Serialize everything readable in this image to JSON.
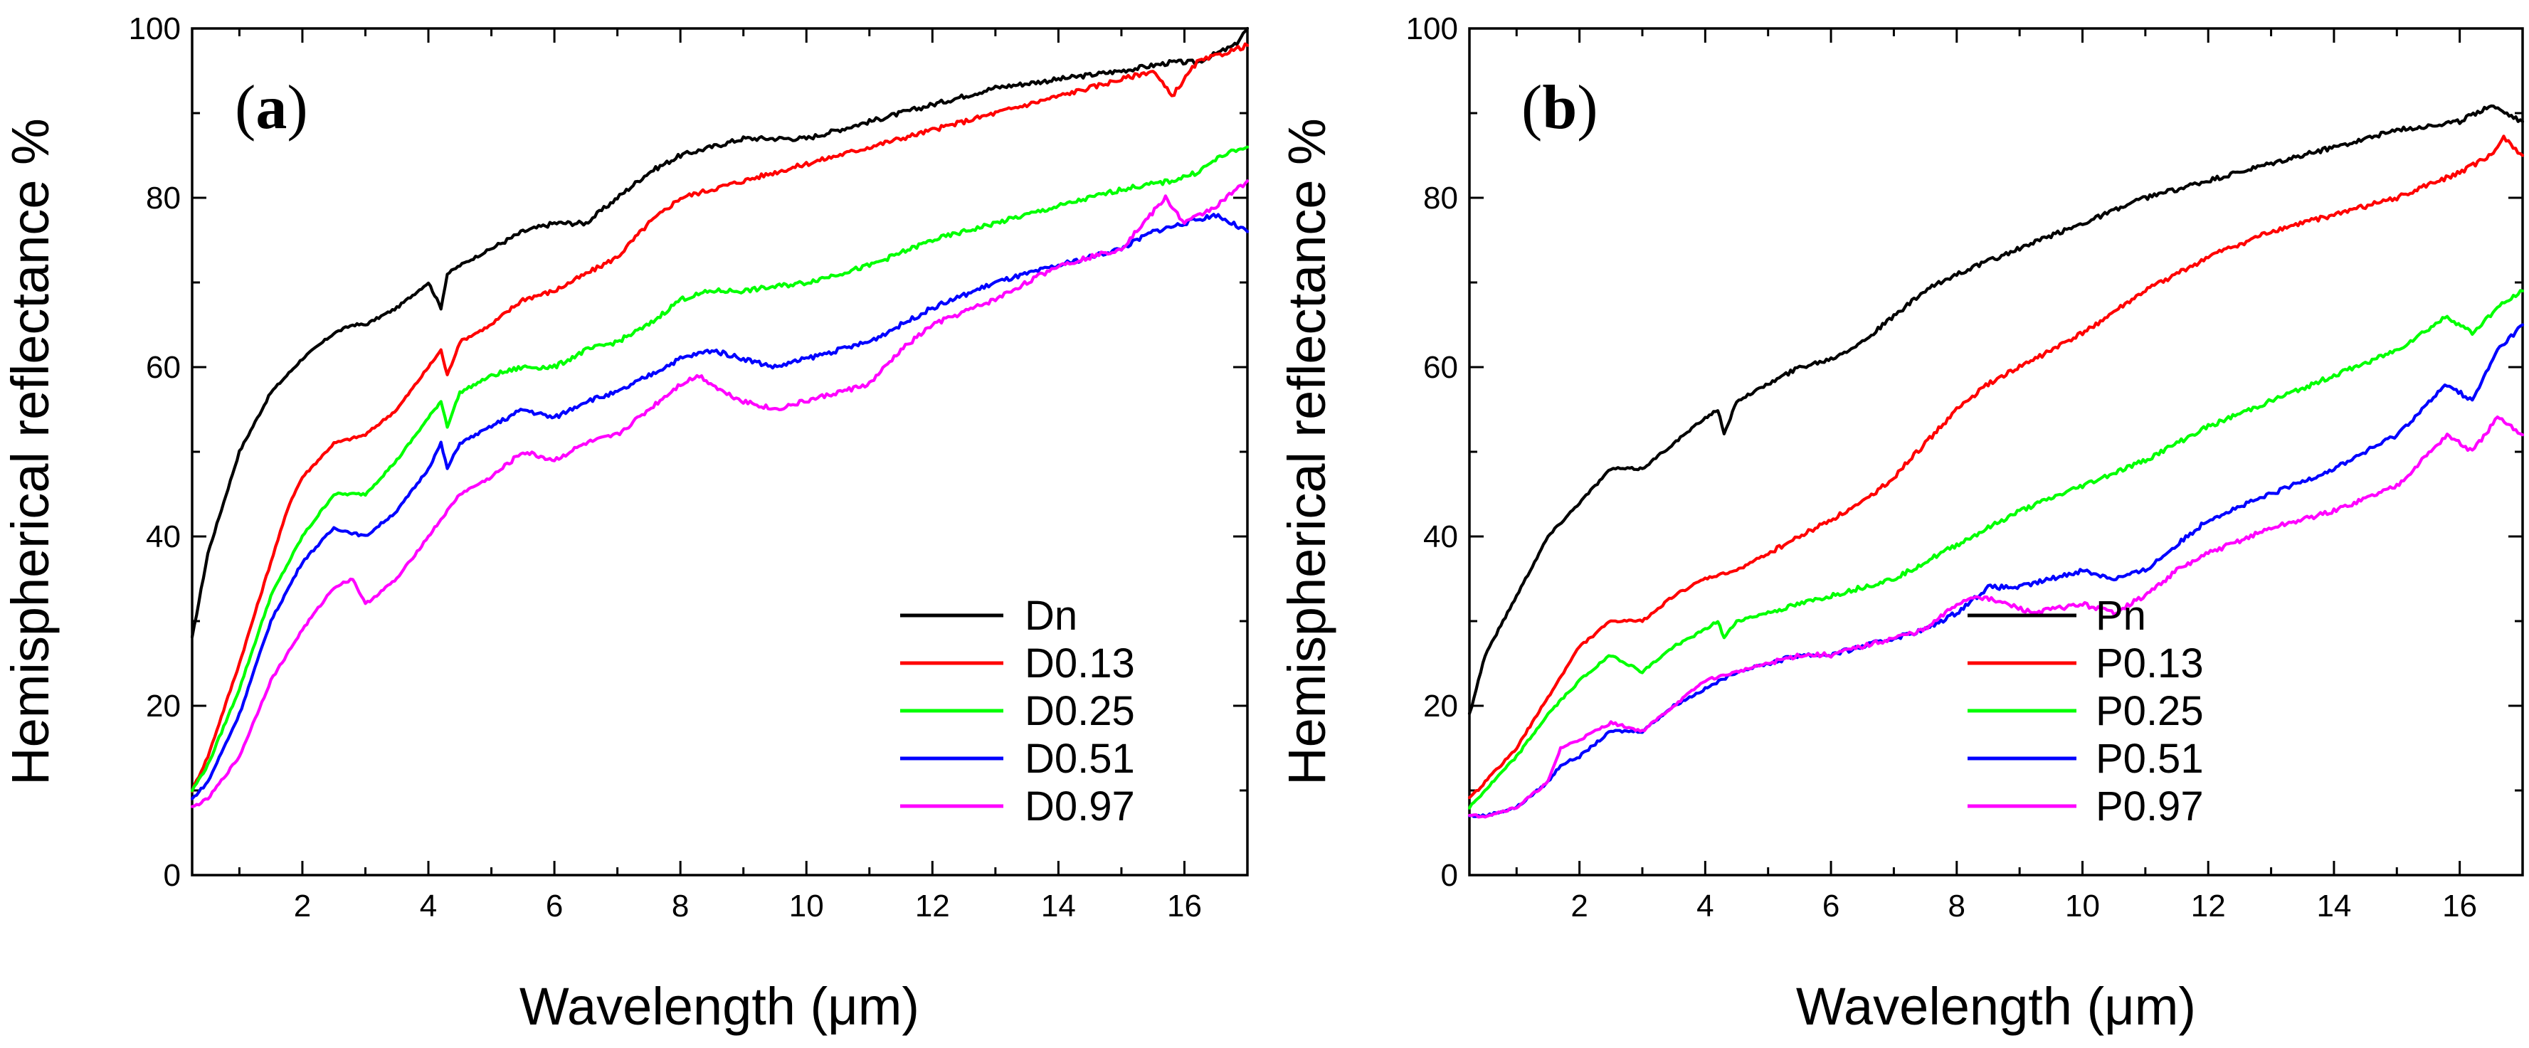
{
  "chart_data": [
    {
      "type": "line",
      "panel_label": "(a)",
      "panel_label_open": "(",
      "panel_label_letter": "a",
      "panel_label_close": ")",
      "xlabel": "Wavelength (μm)",
      "ylabel": "Hemispherical reflectance %",
      "xlim": [
        0.25,
        17
      ],
      "ylim": [
        0,
        100
      ],
      "xticks": [
        2,
        4,
        6,
        8,
        10,
        12,
        14,
        16
      ],
      "xtick_labels": [
        "2",
        "4",
        "6",
        "8",
        "10",
        "12",
        "14",
        "16"
      ],
      "yticks": [
        0,
        20,
        40,
        60,
        80,
        100
      ],
      "ytick_labels": [
        "0",
        "20",
        "40",
        "60",
        "80",
        "100"
      ],
      "legend_position": "bottom-right",
      "series": [
        {
          "name": "Dn",
          "color": "#000000",
          "x": [
            0.25,
            0.5,
            1.0,
            1.5,
            2.0,
            2.5,
            2.8,
            3.0,
            3.5,
            4.0,
            4.2,
            4.3,
            4.5,
            5.0,
            5.5,
            6.0,
            6.5,
            7.0,
            7.5,
            8.0,
            8.5,
            9.0,
            9.5,
            10.0,
            11.0,
            12.0,
            13.0,
            14.0,
            15.0,
            15.8,
            16.2,
            16.5,
            16.8,
            17.0
          ],
          "y": [
            28,
            38,
            50,
            57,
            61,
            64,
            65,
            65,
            67,
            70,
            67,
            71,
            72,
            74,
            76,
            77,
            77,
            80,
            83,
            85,
            86,
            87,
            87,
            87,
            89,
            91,
            93,
            94,
            95,
            96,
            96,
            97,
            98,
            100
          ]
        },
        {
          "name": "D0.13",
          "color": "#ff0000",
          "x": [
            0.25,
            0.5,
            1.0,
            1.5,
            1.8,
            2.0,
            2.5,
            3.0,
            3.5,
            4.0,
            4.2,
            4.3,
            4.5,
            5.0,
            5.5,
            6.0,
            6.5,
            7.0,
            7.5,
            8.0,
            8.5,
            9.0,
            10.0,
            11.0,
            12.0,
            13.0,
            14.0,
            15.0,
            15.5,
            15.8,
            16.2,
            16.6,
            17.0
          ],
          "y": [
            10,
            14,
            25,
            37,
            44,
            47,
            51,
            52,
            55,
            60,
            62,
            59,
            63,
            65,
            68,
            69,
            71,
            73,
            77,
            80,
            81,
            82,
            84,
            86,
            88,
            90,
            92,
            94,
            95,
            92,
            96,
            97,
            98
          ]
        },
        {
          "name": "D0.25",
          "color": "#00ff00",
          "x": [
            0.25,
            0.5,
            1.0,
            1.5,
            2.0,
            2.5,
            3.0,
            3.5,
            4.0,
            4.2,
            4.3,
            4.5,
            5.0,
            5.5,
            6.0,
            6.5,
            7.0,
            7.5,
            8.0,
            8.5,
            9.0,
            10.0,
            11.0,
            12.0,
            13.0,
            14.0,
            15.0,
            15.8,
            16.2,
            16.6,
            17.0
          ],
          "y": [
            10,
            13,
            22,
            33,
            40,
            45,
            45,
            49,
            54,
            56,
            53,
            57,
            59,
            60,
            60,
            62,
            63,
            65,
            68,
            69,
            69,
            70,
            72,
            75,
            77,
            79,
            81,
            82,
            83,
            85,
            86
          ]
        },
        {
          "name": "D0.51",
          "color": "#0000ff",
          "x": [
            0.25,
            0.5,
            1.0,
            1.5,
            2.0,
            2.5,
            3.0,
            3.5,
            4.0,
            4.2,
            4.3,
            4.5,
            5.0,
            5.5,
            6.0,
            6.5,
            7.0,
            7.5,
            8.0,
            8.5,
            9.0,
            9.5,
            10.0,
            10.5,
            11.0,
            12.0,
            13.0,
            14.0,
            15.0,
            15.5,
            16.0,
            16.5,
            17.0
          ],
          "y": [
            9,
            11,
            19,
            30,
            37,
            41,
            40,
            43,
            48,
            51,
            48,
            51,
            53,
            55,
            54,
            56,
            57,
            59,
            61,
            62,
            61,
            60,
            61,
            62,
            63,
            67,
            70,
            72,
            74,
            76,
            77,
            78,
            76
          ]
        },
        {
          "name": "D0.97",
          "color": "#ff00ff",
          "x": [
            0.25,
            0.5,
            1.0,
            1.5,
            2.0,
            2.5,
            2.8,
            3.0,
            3.5,
            4.0,
            4.2,
            4.3,
            4.5,
            5.0,
            5.5,
            6.0,
            6.5,
            7.0,
            7.5,
            8.0,
            8.3,
            8.7,
            9.0,
            9.5,
            10.0,
            10.5,
            11.0,
            11.5,
            12.0,
            13.0,
            14.0,
            15.0,
            15.7,
            16.0,
            16.5,
            17.0
          ],
          "y": [
            8,
            9,
            14,
            23,
            29,
            34,
            35,
            32,
            35,
            40,
            42,
            43,
            45,
            47,
            50,
            49,
            51,
            52,
            55,
            58,
            59,
            57,
            56,
            55,
            56,
            57,
            58,
            62,
            65,
            68,
            72,
            74,
            80,
            77,
            79,
            82
          ]
        }
      ]
    },
    {
      "type": "line",
      "panel_label": "(b)",
      "panel_label_open": "(",
      "panel_label_letter": "b",
      "panel_label_close": ")",
      "xlabel": "Wavelength (μm)",
      "ylabel": "Hemispherical reflectance %",
      "xlim": [
        0.25,
        17
      ],
      "ylim": [
        0,
        100
      ],
      "xticks": [
        2,
        4,
        6,
        8,
        10,
        12,
        14,
        16
      ],
      "xtick_labels": [
        "2",
        "4",
        "6",
        "8",
        "10",
        "12",
        "14",
        "16"
      ],
      "yticks": [
        0,
        20,
        40,
        60,
        80,
        100
      ],
      "ytick_labels": [
        "0",
        "20",
        "40",
        "60",
        "80",
        "100"
      ],
      "legend_position": "bottom-right",
      "series": [
        {
          "name": "Pn",
          "color": "#000000",
          "x": [
            0.25,
            0.5,
            1.0,
            1.5,
            2.0,
            2.5,
            2.8,
            3.0,
            3.5,
            4.0,
            4.2,
            4.3,
            4.5,
            5.0,
            5.5,
            6.0,
            6.5,
            7.0,
            7.5,
            8.0,
            9.0,
            10.0,
            11.0,
            12.0,
            13.0,
            14.0,
            15.0,
            16.0,
            16.5,
            17.0
          ],
          "y": [
            19,
            26,
            33,
            40,
            44,
            48,
            48,
            48,
            51,
            54,
            55,
            52,
            56,
            58,
            60,
            61,
            63,
            66,
            69,
            71,
            74,
            77,
            80,
            82,
            84,
            86,
            88,
            89,
            91,
            89
          ]
        },
        {
          "name": "P0.13",
          "color": "#ff0000",
          "x": [
            0.25,
            0.5,
            1.0,
            1.5,
            2.0,
            2.5,
            3.0,
            3.5,
            4.0,
            4.5,
            5.0,
            5.5,
            6.0,
            6.5,
            7.0,
            7.5,
            8.0,
            8.5,
            9.0,
            10.0,
            11.0,
            12.0,
            13.0,
            14.0,
            15.0,
            16.0,
            16.5,
            16.7,
            17.0
          ],
          "y": [
            9,
            11,
            15,
            21,
            27,
            30,
            30,
            33,
            35,
            36,
            38,
            40,
            42,
            44,
            47,
            51,
            55,
            58,
            60,
            64,
            69,
            73,
            76,
            78,
            80,
            83,
            85,
            87,
            85
          ]
        },
        {
          "name": "P0.25",
          "color": "#00ff00",
          "x": [
            0.25,
            0.5,
            1.0,
            1.5,
            2.0,
            2.5,
            3.0,
            3.5,
            4.0,
            4.2,
            4.3,
            4.5,
            5.0,
            5.5,
            6.0,
            6.5,
            7.0,
            7.5,
            8.0,
            8.5,
            9.0,
            10.0,
            11.0,
            12.0,
            13.0,
            14.0,
            15.0,
            15.8,
            16.2,
            16.6,
            17.0
          ],
          "y": [
            8,
            10,
            14,
            19,
            23,
            26,
            24,
            27,
            29,
            30,
            28,
            30,
            31,
            32,
            33,
            34,
            35,
            37,
            39,
            41,
            43,
            46,
            49,
            53,
            56,
            59,
            62,
            66,
            64,
            67,
            69
          ]
        },
        {
          "name": "P0.51",
          "color": "#0000ff",
          "x": [
            0.25,
            0.5,
            1.0,
            1.5,
            1.7,
            2.0,
            2.5,
            3.0,
            3.5,
            4.0,
            4.5,
            5.0,
            5.5,
            6.0,
            6.5,
            7.0,
            7.5,
            8.0,
            8.5,
            9.0,
            9.5,
            10.0,
            10.5,
            11.0,
            11.5,
            12.0,
            13.0,
            14.0,
            15.0,
            15.8,
            16.2,
            16.6,
            17.0
          ],
          "y": [
            7,
            7,
            8,
            11,
            13,
            14,
            17,
            17,
            20,
            22,
            24,
            25,
            26,
            26,
            27,
            28,
            29,
            31,
            34,
            34,
            35,
            36,
            35,
            36,
            39,
            42,
            45,
            48,
            52,
            58,
            56,
            62,
            65
          ]
        },
        {
          "name": "P0.97",
          "color": "#ff00ff",
          "x": [
            0.25,
            0.5,
            1.0,
            1.5,
            1.7,
            2.0,
            2.5,
            3.0,
            3.5,
            4.0,
            4.5,
            5.0,
            5.5,
            6.0,
            6.5,
            7.0,
            7.5,
            8.0,
            8.3,
            8.8,
            9.2,
            10.0,
            10.5,
            11.0,
            11.5,
            12.0,
            13.0,
            14.0,
            15.0,
            15.8,
            16.2,
            16.6,
            17.0
          ],
          "y": [
            7,
            7,
            8,
            11,
            15,
            16,
            18,
            17,
            20,
            23,
            24,
            25,
            26,
            26,
            27,
            28,
            29,
            32,
            33,
            32,
            31,
            32,
            31,
            33,
            36,
            38,
            41,
            43,
            46,
            52,
            50,
            54,
            52
          ]
        }
      ]
    }
  ]
}
